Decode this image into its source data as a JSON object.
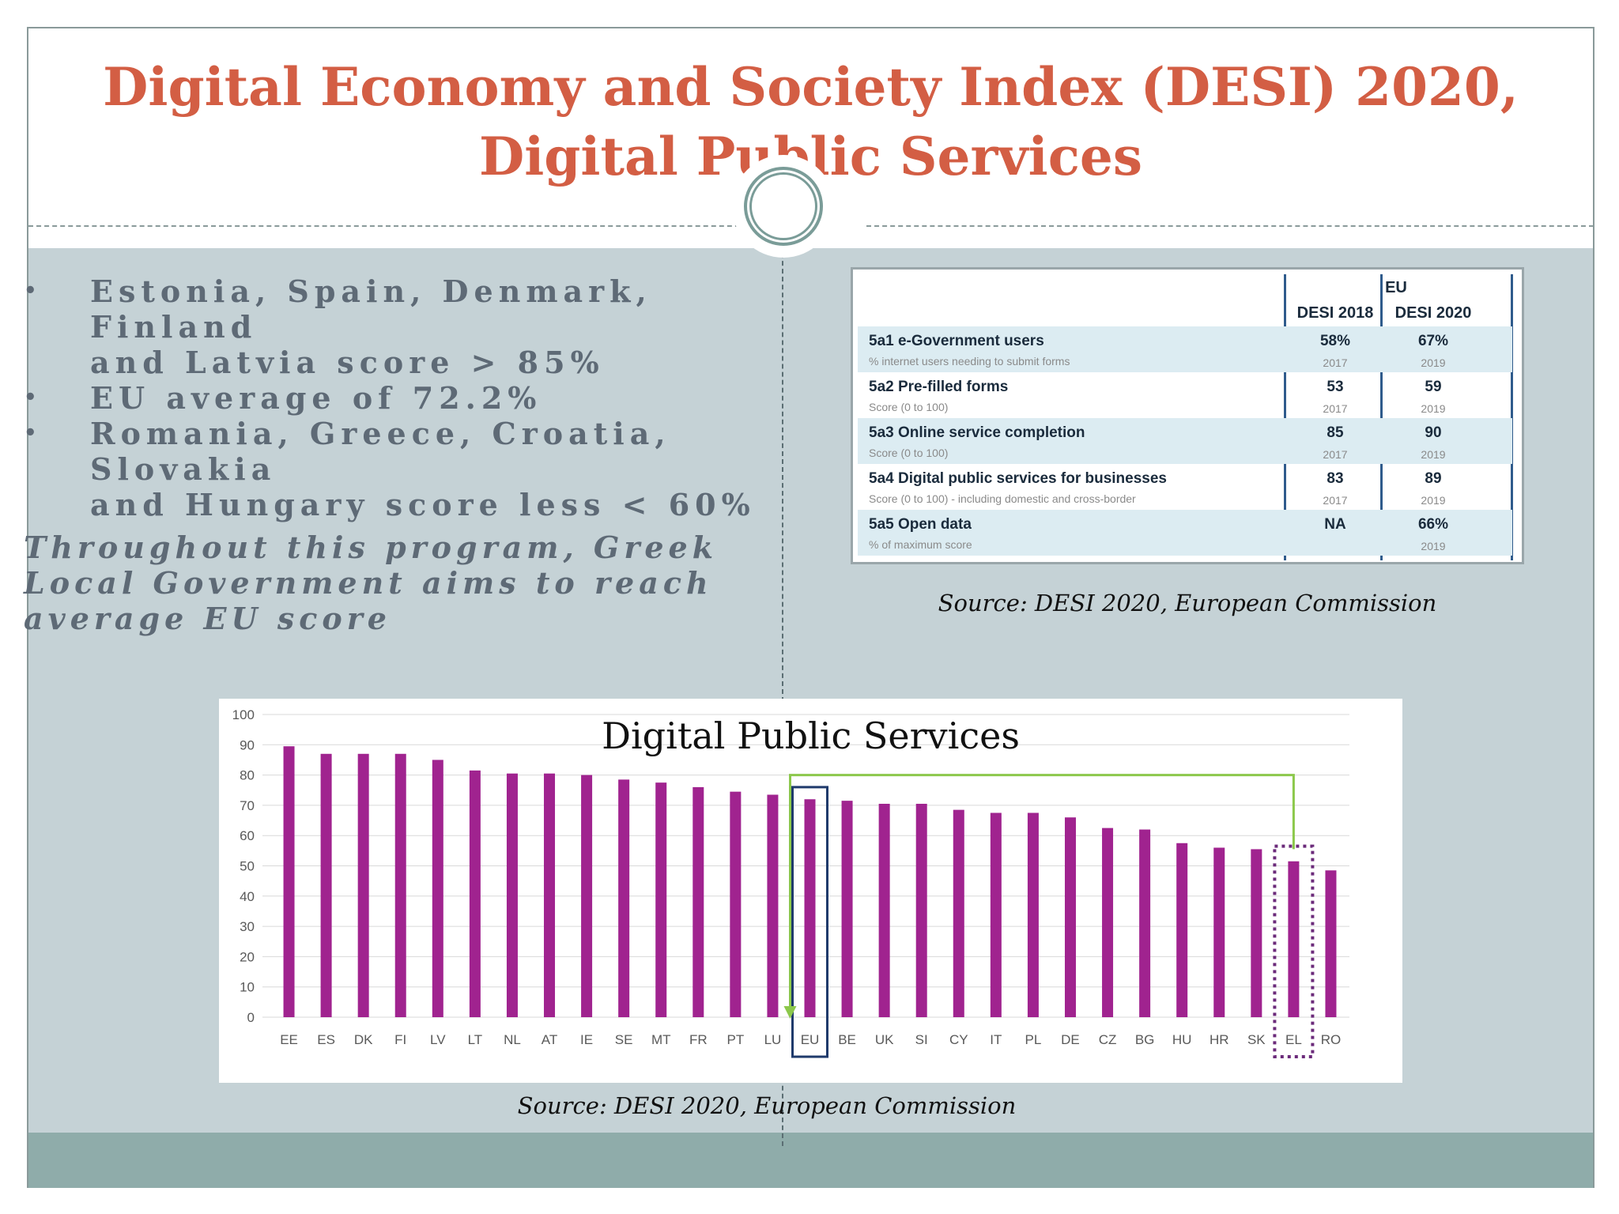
{
  "slide": {
    "title_line1": "Digital Economy and Society Index (DESI) 2020,",
    "title_line2": "Digital Public Services",
    "colors": {
      "title": "#d35e44",
      "content_background": "#c5d2d6",
      "footer_band": "#8facaa",
      "bar": "#a0238f",
      "eu_highlight": "#1f3a6b",
      "greece_highlight": "#6b2a7a",
      "connector": "#8cc84b"
    }
  },
  "bullets": [
    {
      "line1": "Estonia, Spain, Denmark, Finland",
      "line2": "and Latvia score > 85%"
    },
    {
      "line1": "EU average of 72.2%",
      "line2": ""
    },
    {
      "line1": "Romania, Greece, Croatia, Slovakia",
      "line2": "and Hungary score less < 60%"
    }
  ],
  "bullet_symbol": "•",
  "program_note": [
    "Throughout this program, Greek",
    "Local Government aims to reach",
    "average EU score"
  ],
  "eu_table": {
    "group_header": "EU",
    "columns": [
      "DESI 2018",
      "DESI 2020"
    ],
    "rows": [
      {
        "name": "5a1 e-Government users",
        "sub": "% internet users needing to submit forms",
        "v2018": "58%",
        "y2018": "2017",
        "v2020": "67%",
        "y2020": "2019"
      },
      {
        "name": "5a2 Pre-filled forms",
        "sub": "Score (0 to 100)",
        "v2018": "53",
        "y2018": "2017",
        "v2020": "59",
        "y2020": "2019"
      },
      {
        "name": "5a3 Online service completion",
        "sub": "Score (0 to 100)",
        "v2018": "85",
        "y2018": "2017",
        "v2020": "90",
        "y2020": "2019"
      },
      {
        "name": "5a4 Digital public services for businesses",
        "sub": "Score (0 to 100) - including domestic and cross-border",
        "v2018": "83",
        "y2018": "2017",
        "v2020": "89",
        "y2020": "2019"
      },
      {
        "name": "5a5 Open data",
        "sub": "% of maximum score",
        "v2018": "NA",
        "y2018": "",
        "v2020": "66%",
        "y2020": "2019"
      }
    ]
  },
  "source_table": "Source: DESI 2020, European Commission",
  "source_chart": "Source: DESI 2020, European Commission",
  "chart_data": {
    "type": "bar",
    "title": "Digital Public Services",
    "xlabel": "",
    "ylabel": "",
    "ylim": [
      0,
      100
    ],
    "yticks": [
      0,
      10,
      20,
      30,
      40,
      50,
      60,
      70,
      80,
      90,
      100
    ],
    "grid": true,
    "categories": [
      "EE",
      "ES",
      "DK",
      "FI",
      "LV",
      "LT",
      "NL",
      "AT",
      "IE",
      "SE",
      "MT",
      "FR",
      "PT",
      "LU",
      "EU",
      "BE",
      "UK",
      "SI",
      "CY",
      "IT",
      "PL",
      "DE",
      "CZ",
      "BG",
      "HU",
      "HR",
      "SK",
      "EL",
      "RO"
    ],
    "values": [
      89.5,
      87,
      87,
      87,
      85,
      81.5,
      80.5,
      80.5,
      80,
      78.5,
      77.5,
      76,
      74.5,
      73.5,
      72,
      71.5,
      70.5,
      70.5,
      68.5,
      67.5,
      67.5,
      66,
      62.5,
      62,
      57.5,
      56,
      55.5,
      51.5,
      48.5
    ],
    "highlights": [
      {
        "category": "EU",
        "style": "solid-box"
      },
      {
        "category": "EL",
        "style": "dotted-box"
      }
    ],
    "connector": {
      "from": "EL",
      "to": "EU",
      "level": 80
    }
  }
}
